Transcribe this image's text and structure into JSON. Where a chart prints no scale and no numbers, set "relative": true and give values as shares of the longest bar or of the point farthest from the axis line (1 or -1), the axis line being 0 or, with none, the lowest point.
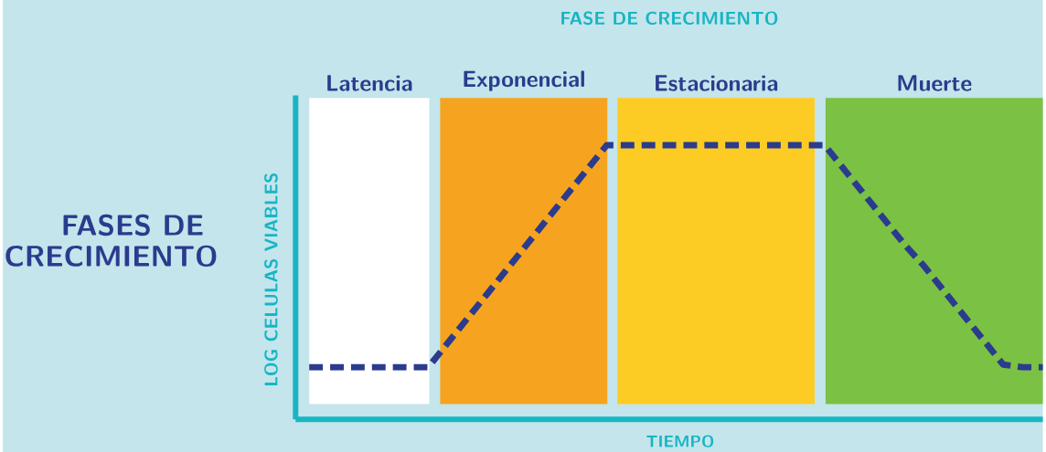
{
  "chart_data": {
    "type": "line",
    "title": "FASES DE CRECIMIENTO",
    "subtitle": "FASE DE CRECIMIENTO",
    "xlabel": "TIEMPO",
    "ylabel": "LOG CELULAS VIABLES",
    "relative": true,
    "tick_labels": false,
    "line_style": "dashed",
    "categories": [
      null,
      null,
      null,
      null,
      null,
      null,
      null,
      null,
      null,
      null,
      null,
      null,
      null,
      null,
      null,
      null,
      null,
      null,
      null,
      null,
      null,
      null,
      null,
      null,
      null,
      null,
      null,
      null,
      null,
      null,
      null,
      null,
      null,
      null,
      null,
      null,
      null,
      null
    ],
    "series": [
      {
        "color": "#2b3b8e",
        "values": [
          0.19,
          0.19,
          0.19,
          0.19,
          0.19,
          0.19,
          0.19,
          0.28,
          0.37,
          0.46,
          0.55,
          0.64,
          0.73,
          0.82,
          0.91,
          1,
          1,
          1,
          1,
          1,
          1,
          1,
          1,
          1,
          1,
          1,
          1,
          0.91,
          0.82,
          0.73,
          0.64,
          0.56,
          0.47,
          0.38,
          0.29,
          0.2,
          0.19,
          0.19
        ]
      }
    ],
    "annotations": [
      "Latencia",
      "Exponencial",
      "Estacionaria",
      "Muerte"
    ]
  }
}
